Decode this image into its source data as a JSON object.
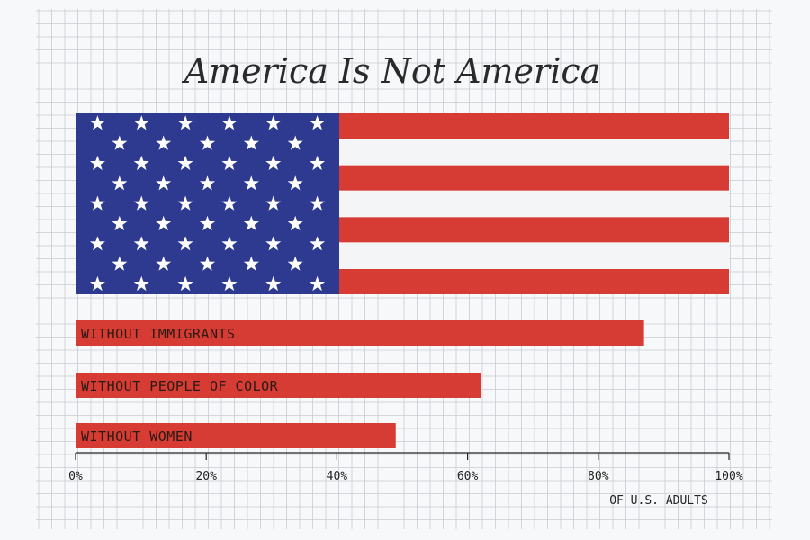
{
  "chart_data": {
    "type": "bar",
    "orientation": "horizontal",
    "title": "America Is Not America",
    "categories": [
      "WITHOUT IMMIGRANTS",
      "WITHOUT PEOPLE OF COLOR",
      "WITHOUT WOMEN"
    ],
    "values": [
      87,
      62,
      49
    ],
    "full_bar_value": 100,
    "full_bar_style": "us-flag",
    "xlim": [
      0,
      100
    ],
    "xticks": [
      0,
      20,
      40,
      60,
      80,
      100
    ],
    "xtick_labels": [
      "0%",
      "20%",
      "40%",
      "60%",
      "80%",
      "100%"
    ],
    "xlabel": "OF U.S. ADULTS",
    "ylabel": "",
    "grid": true,
    "legend": "none"
  },
  "colors": {
    "background": "#f7f8f9",
    "grid": "#c7ccd3",
    "bar_red": "#d63c33",
    "flag_blue": "#2e3a8f",
    "flag_white": "#f4f5f6",
    "star": "#ffffff"
  }
}
